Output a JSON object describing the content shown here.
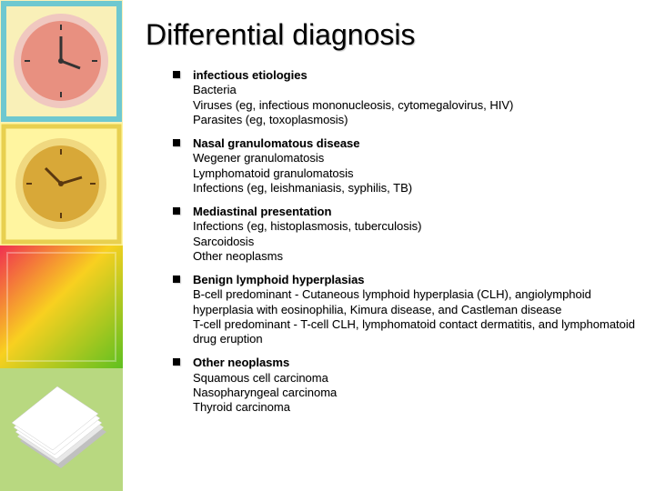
{
  "title": "Differential diagnosis",
  "sidebar": {
    "tiles": [
      {
        "type": "clock",
        "bg": "#f9f0b8",
        "border": "#6ec8d0",
        "face": "#e89080",
        "ring": "#f0c8c0"
      },
      {
        "type": "clock",
        "bg": "#fff5a0",
        "border": "#e8d050",
        "face": "#d8a838",
        "ring": "#f0d880"
      },
      {
        "type": "gradient",
        "c1": "#f03050",
        "c2": "#f8d020",
        "c3": "#60c020"
      },
      {
        "type": "papers",
        "bg": "#b8d880",
        "paper": "#ffffff",
        "shade": "#c0c0c0"
      }
    ]
  },
  "items": [
    {
      "lines": [
        {
          "text": "infectious etiologies",
          "bold": true
        },
        {
          "text": "Bacteria",
          "bold": false
        },
        {
          "text": "Viruses (eg, infectious mononucleosis, cytomegalovirus, HIV)",
          "bold": false
        },
        {
          "text": "Parasites (eg, toxoplasmosis)",
          "bold": false
        }
      ]
    },
    {
      "lines": [
        {
          "text": "Nasal granulomatous disease",
          "bold": true
        },
        {
          "text": "Wegener granulomatosis",
          "bold": false
        },
        {
          "text": "Lymphomatoid granulomatosis",
          "bold": false
        },
        {
          "text": "Infections (eg, leishmaniasis, syphilis, TB)",
          "bold": false
        }
      ]
    },
    {
      "lines": [
        {
          "text": "Mediastinal presentation",
          "bold": true
        },
        {
          "text": "Infections (eg, histoplasmosis, tuberculosis)",
          "bold": false
        },
        {
          "text": "Sarcoidosis",
          "bold": false
        },
        {
          "text": "Other neoplasms",
          "bold": false
        }
      ]
    },
    {
      "lines": [
        {
          "text": "Benign lymphoid hyperplasias",
          "bold": true
        },
        {
          "text": "B-cell predominant - Cutaneous lymphoid hyperplasia (CLH), angiolymphoid hyperplasia with eosinophilia, Kimura disease, and Castleman disease",
          "bold": false
        },
        {
          "text": "T-cell predominant - T-cell CLH, lymphomatoid contact dermatitis, and lymphomatoid drug eruption",
          "bold": false
        }
      ]
    },
    {
      "lines": [
        {
          "text": "Other neoplasms",
          "bold": true
        },
        {
          "text": "Squamous cell carcinoma",
          "bold": false
        },
        {
          "text": "Nasopharyngeal carcinoma",
          "bold": false
        },
        {
          "text": "Thyroid carcinoma",
          "bold": false
        }
      ]
    }
  ]
}
